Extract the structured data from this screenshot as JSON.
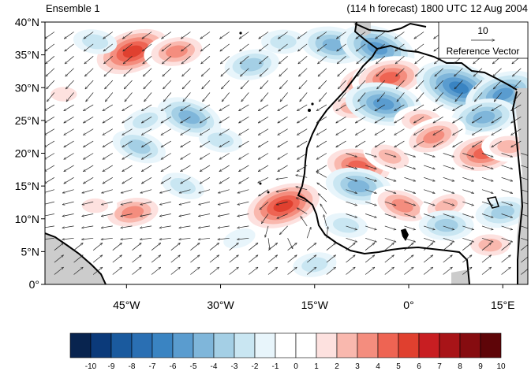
{
  "header": {
    "left_title": "Ensemble 1",
    "right_title": "(114 h forecast) 1800 UTC 12 Aug 2004"
  },
  "map": {
    "lon_range": [
      -58,
      19
    ],
    "lat_range": [
      0,
      40
    ],
    "lat_ticks": [
      {
        "value": 40,
        "label": "40°N"
      },
      {
        "value": 35,
        "label": "35°N"
      },
      {
        "value": 30,
        "label": "30°N"
      },
      {
        "value": 25,
        "label": "25°N"
      },
      {
        "value": 20,
        "label": "20°N"
      },
      {
        "value": 15,
        "label": "15°N"
      },
      {
        "value": 10,
        "label": "10°N"
      },
      {
        "value": 5,
        "label": "5°N"
      },
      {
        "value": 0,
        "label": "0°"
      }
    ],
    "lon_ticks": [
      {
        "value": -45,
        "label": "45°W"
      },
      {
        "value": -30,
        "label": "30°W"
      },
      {
        "value": -15,
        "label": "15°W"
      },
      {
        "value": 0,
        "label": "0°"
      },
      {
        "value": 15,
        "label": "15°E"
      }
    ],
    "land_color": "#cccccc",
    "ocean_color": "#ffffff",
    "coast_color": "#000000"
  },
  "reference_vector": {
    "magnitude_label": "10",
    "caption": "Reference Vector",
    "magnitude": 10
  },
  "colorbar": {
    "labels": [
      "-10",
      "-9",
      "-8",
      "-7",
      "-6",
      "-5",
      "-4",
      "-3",
      "-2",
      "-1",
      "0",
      "1",
      "2",
      "3",
      "4",
      "5",
      "6",
      "7",
      "8",
      "9",
      "10"
    ],
    "colors": [
      "#08244f",
      "#0b3a7a",
      "#1a5a9e",
      "#2a6fb3",
      "#3a84c2",
      "#5a9ccf",
      "#7fb6da",
      "#a4cfe5",
      "#c9e6f2",
      "#e8f5fb",
      "#ffffff",
      "#ffffff",
      "#fde1df",
      "#f9b8ae",
      "#f48d7e",
      "#ee6453",
      "#e0402f",
      "#c81e22",
      "#a81418",
      "#860c10",
      "#5e0508"
    ]
  },
  "anomalies": [
    {
      "lon": -44,
      "lat": 35.5,
      "value": 6
    },
    {
      "lon": -37,
      "lat": 35.5,
      "value": 4
    },
    {
      "lon": -55,
      "lat": 29,
      "value": 2
    },
    {
      "lon": -50,
      "lat": 37,
      "value": -2
    },
    {
      "lon": -35,
      "lat": 25.5,
      "value": -4
    },
    {
      "lon": -42,
      "lat": 25,
      "value": -2
    },
    {
      "lon": -25,
      "lat": 33.5,
      "value": -3
    },
    {
      "lon": -20,
      "lat": 37,
      "value": -2
    },
    {
      "lon": -12,
      "lat": 36.5,
      "value": -4
    },
    {
      "lon": -5,
      "lat": 36,
      "value": -5
    },
    {
      "lon": -7,
      "lat": 31,
      "value": 4
    },
    {
      "lon": -3,
      "lat": 31.5,
      "value": 5
    },
    {
      "lon": -9,
      "lat": 27,
      "value": 3
    },
    {
      "lon": -4,
      "lat": 27.5,
      "value": -5
    },
    {
      "lon": 8,
      "lat": 30,
      "value": -6
    },
    {
      "lon": 15,
      "lat": 29,
      "value": -5
    },
    {
      "lon": 12,
      "lat": 25.5,
      "value": -4
    },
    {
      "lon": 2,
      "lat": 25,
      "value": 3
    },
    {
      "lon": -30,
      "lat": 22,
      "value": -2
    },
    {
      "lon": -43,
      "lat": 21,
      "value": -3
    },
    {
      "lon": -20,
      "lat": 12,
      "value": 6
    },
    {
      "lon": -44,
      "lat": 11,
      "value": 4
    },
    {
      "lon": -50,
      "lat": 12,
      "value": 2
    },
    {
      "lon": -8,
      "lat": 18,
      "value": 5
    },
    {
      "lon": -3,
      "lat": 19.5,
      "value": 3
    },
    {
      "lon": 4,
      "lat": 22.5,
      "value": 4
    },
    {
      "lon": 12,
      "lat": 20,
      "value": 5
    },
    {
      "lon": 16,
      "lat": 21,
      "value": 3
    },
    {
      "lon": -8,
      "lat": 15,
      "value": -4
    },
    {
      "lon": -1,
      "lat": 12,
      "value": 4
    },
    {
      "lon": 6,
      "lat": 12,
      "value": 3
    },
    {
      "lon": 15,
      "lat": 11,
      "value": -3
    },
    {
      "lon": 6,
      "lat": 9,
      "value": -3
    },
    {
      "lon": -10,
      "lat": 9,
      "value": -2
    },
    {
      "lon": -36,
      "lat": 15,
      "value": -2
    },
    {
      "lon": -27,
      "lat": 7,
      "value": -1
    },
    {
      "lon": -15,
      "lat": 3,
      "value": -2
    },
    {
      "lon": 13,
      "lat": 6,
      "value": 3
    }
  ]
}
